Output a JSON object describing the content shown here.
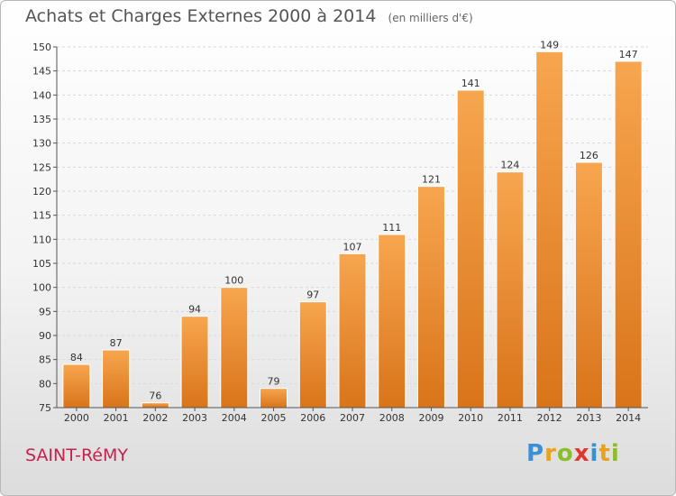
{
  "chart_data": {
    "type": "bar",
    "title": "Achats et Charges Externes 2000 à 2014",
    "subtitle": "(en milliers d'€)",
    "categories": [
      "2000",
      "2001",
      "2002",
      "2003",
      "2004",
      "2005",
      "2006",
      "2007",
      "2008",
      "2009",
      "2010",
      "2011",
      "2012",
      "2013",
      "2014"
    ],
    "values": [
      84,
      87,
      76,
      94,
      100,
      79,
      97,
      107,
      111,
      121,
      141,
      124,
      149,
      126,
      147
    ],
    "ylim": [
      75,
      150
    ],
    "yticks": [
      75,
      80,
      85,
      90,
      95,
      100,
      105,
      110,
      115,
      120,
      125,
      130,
      135,
      140,
      145,
      150
    ],
    "grid": true,
    "bar_color": "#f0953a"
  },
  "footer": {
    "place": "SAINT-RéMY",
    "brand_letters": [
      {
        "ch": "P",
        "color": "#3a8fd6"
      },
      {
        "ch": "r",
        "color": "#e8a21c"
      },
      {
        "ch": "o",
        "color": "#8bbf2a"
      },
      {
        "ch": "x",
        "color": "#e0382f"
      },
      {
        "ch": "i",
        "color": "#3a8fd6"
      },
      {
        "ch": "t",
        "color": "#e8a21c"
      },
      {
        "ch": "i",
        "color": "#8bbf2a"
      }
    ]
  }
}
